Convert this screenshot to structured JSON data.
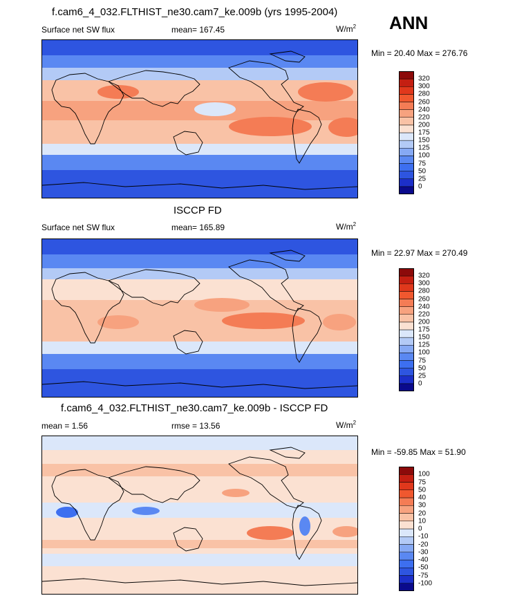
{
  "season": "ANN",
  "units_text": "W/m",
  "units_sup": "2",
  "panels": [
    {
      "title": "f.cam6_4_032.FLTHIST_ne30.cam7_ke.009b (yrs 1995-2004)",
      "left_label": "Surface net SW flux",
      "center_label": "mean= 167.45",
      "minmax": "Min =  20.40 Max = 276.76"
    },
    {
      "title": "ISCCP FD",
      "left_label": "Surface net SW flux",
      "center_label": "mean= 165.89",
      "minmax": "Min =  22.97 Max = 270.49"
    },
    {
      "title": "f.cam6_4_032.FLTHIST_ne30.cam7_ke.009b - ISCCP FD",
      "left_label": "mean =   1.56",
      "center_label": "rmse =  13.56",
      "minmax": "Min = -59.85 Max =  51.90"
    }
  ],
  "chart_data": [
    {
      "type": "heatmap",
      "title": "f.cam6_4_032.FLTHIST_ne30.cam7_ke.009b (yrs 1995-2004)",
      "variable": "Surface net SW flux",
      "mean": 167.45,
      "min": 20.4,
      "max": 276.76,
      "legend_placement": "right",
      "colorbar_levels": [
        "0",
        "25",
        "50",
        "75",
        "100",
        "125",
        "150",
        "175",
        "200",
        "220",
        "240",
        "260",
        "280",
        "300",
        "320"
      ],
      "colorbar_colors": [
        "#0a0a8c",
        "#1c2fc9",
        "#2e55e0",
        "#3d6ff0",
        "#5a88f2",
        "#86a9f4",
        "#b3caf6",
        "#dbe7fa",
        "#fbe1d2",
        "#f9c2a6",
        "#f7a27f",
        "#f47c55",
        "#f0582f",
        "#e0381c",
        "#c41f12",
        "#8c0a0a"
      ]
    },
    {
      "type": "heatmap",
      "title": "ISCCP FD",
      "variable": "Surface net SW flux",
      "mean": 165.89,
      "min": 22.97,
      "max": 270.49,
      "legend_placement": "right",
      "colorbar_levels": [
        "0",
        "25",
        "50",
        "75",
        "100",
        "125",
        "150",
        "175",
        "200",
        "220",
        "240",
        "260",
        "280",
        "300",
        "320"
      ],
      "colorbar_colors": [
        "#0a0a8c",
        "#1c2fc9",
        "#2e55e0",
        "#3d6ff0",
        "#5a88f2",
        "#86a9f4",
        "#b3caf6",
        "#dbe7fa",
        "#fbe1d2",
        "#f9c2a6",
        "#f7a27f",
        "#f47c55",
        "#f0582f",
        "#e0381c",
        "#c41f12",
        "#8c0a0a"
      ]
    },
    {
      "type": "heatmap",
      "title": "f.cam6_4_032.FLTHIST_ne30.cam7_ke.009b - ISCCP FD",
      "mean": 1.56,
      "rmse": 13.56,
      "min": -59.85,
      "max": 51.9,
      "legend_placement": "right",
      "colorbar_levels": [
        "-100",
        "-75",
        "-50",
        "-40",
        "-30",
        "-20",
        "-10",
        "0",
        "10",
        "20",
        "30",
        "40",
        "50",
        "75",
        "100"
      ],
      "colorbar_colors": [
        "#0a0a8c",
        "#1c2fc9",
        "#2e55e0",
        "#3d6ff0",
        "#5a88f2",
        "#86a9f4",
        "#b3caf6",
        "#dbe7fa",
        "#fbe1d2",
        "#f9c2a6",
        "#f7a27f",
        "#f47c55",
        "#f0582f",
        "#e0381c",
        "#c41f12",
        "#8c0a0a"
      ]
    }
  ]
}
